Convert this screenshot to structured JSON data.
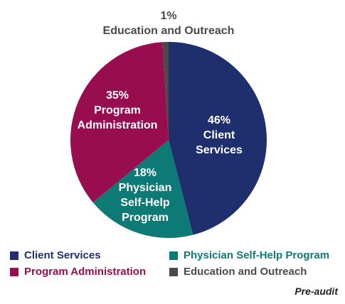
{
  "chart_data": {
    "type": "pie",
    "slices": [
      {
        "key": "client",
        "label": "Client Services",
        "value": 46,
        "pct_text": "46%",
        "name_lines": [
          "Client",
          "Services"
        ],
        "color": "#1f2f6e",
        "text_color": "#1f2f6e"
      },
      {
        "key": "physician",
        "label": "Physician Self-Help Program",
        "value": 18,
        "pct_text": "18%",
        "name_lines": [
          "Physician",
          "Self-Help",
          "Program"
        ],
        "color": "#0d7a76",
        "text_color": "#0d7a76"
      },
      {
        "key": "admin",
        "label": "Program Administration",
        "value": 35,
        "pct_text": "35%",
        "name_lines": [
          "Program",
          "Administration"
        ],
        "color": "#980d4f",
        "text_color": "#980d4f"
      },
      {
        "key": "education",
        "label": "Education and Outreach",
        "value": 1,
        "pct_text": "1%",
        "name_lines": [
          "Education and Outreach"
        ],
        "color": "#4a4a4a",
        "text_color": "#4a4a4a"
      }
    ],
    "start_angle_deg": 0,
    "direction": "clockwise",
    "note": "Pre-audit"
  }
}
